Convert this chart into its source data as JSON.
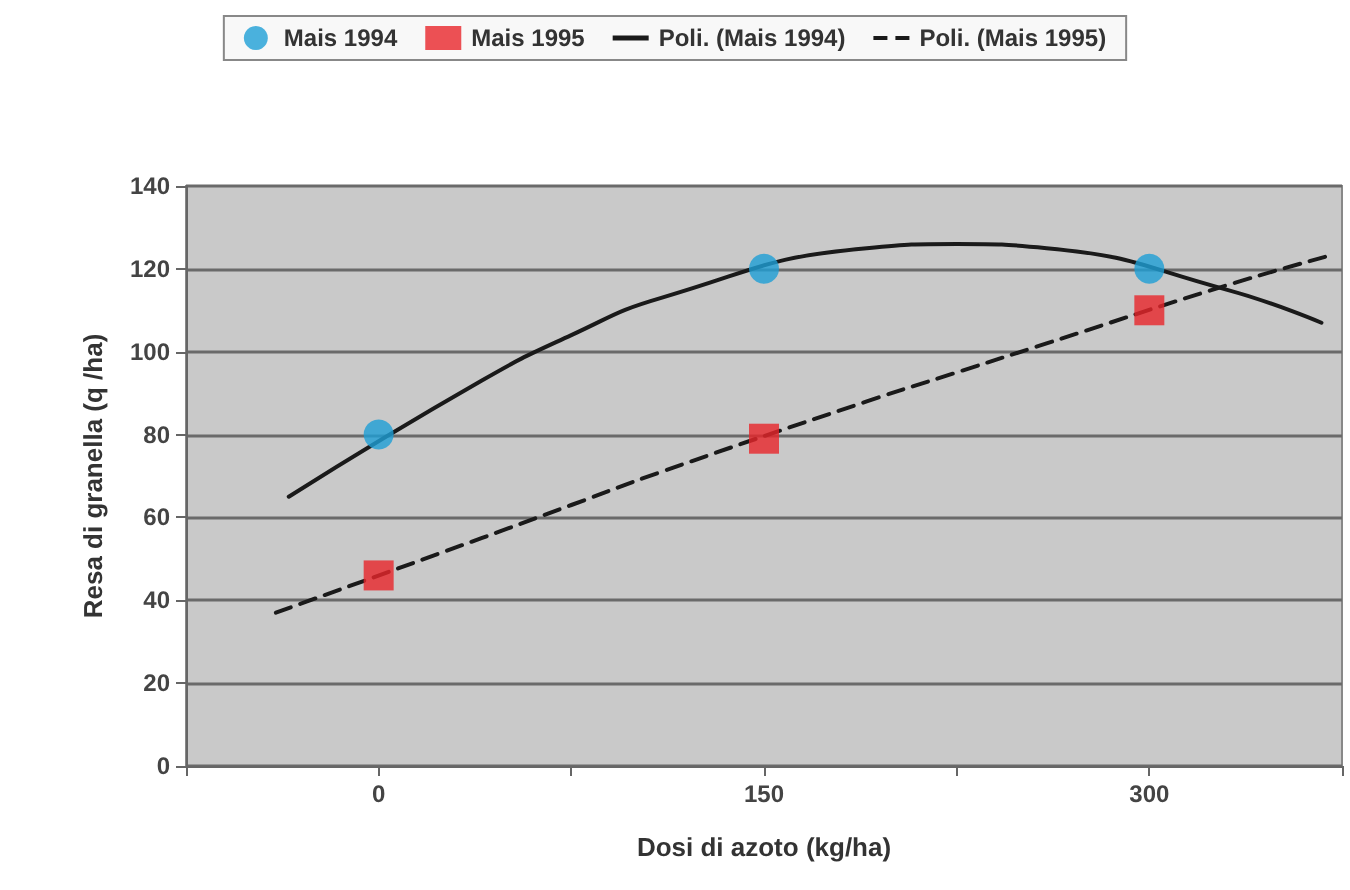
{
  "chart_data": {
    "type": "scatter",
    "xlabel": "Dosi di azoto (kg/ha)",
    "ylabel": "Resa di granella (q /ha)",
    "xlim": [
      -75,
      375
    ],
    "xticks": [
      {
        "value": -75,
        "label": null
      },
      0,
      {
        "value": 75,
        "label": null
      },
      150,
      {
        "value": 225,
        "label": null
      },
      300,
      {
        "value": 375,
        "label": null
      }
    ],
    "ylim": [
      0,
      140
    ],
    "yticks": [
      0,
      20,
      40,
      60,
      80,
      100,
      120,
      140
    ],
    "grid": "y",
    "legend": "top",
    "series": [
      {
        "name": "Mais 1994",
        "marker": "circle",
        "color": "#1e9fd6",
        "x": [
          0,
          150,
          300
        ],
        "values": [
          80,
          120,
          120
        ]
      },
      {
        "name": "Mais 1995",
        "marker": "square",
        "color": "#e8262a",
        "x": [
          0,
          150,
          300
        ],
        "values": [
          46,
          79,
          110
        ]
      },
      {
        "name": "Poli. (Mais 1994)",
        "type": "line",
        "marker": "none",
        "line_style": "solid",
        "color": "#1a1a1a",
        "x": [
          -35,
          40,
          75,
          110,
          190,
          225,
          260,
          330,
          367
        ],
        "values": [
          65,
          93,
          104,
          113,
          125,
          126,
          125,
          115,
          107
        ]
      },
      {
        "name": "Poli. (Mais 1995)",
        "type": "line",
        "marker": "none",
        "line_style": "dashed",
        "color": "#1a1a1a",
        "x": [
          -40,
          40,
          75,
          110,
          190,
          225,
          260,
          330,
          369
        ],
        "values": [
          37,
          55,
          63,
          71,
          88,
          95,
          102,
          116,
          123
        ]
      }
    ]
  }
}
